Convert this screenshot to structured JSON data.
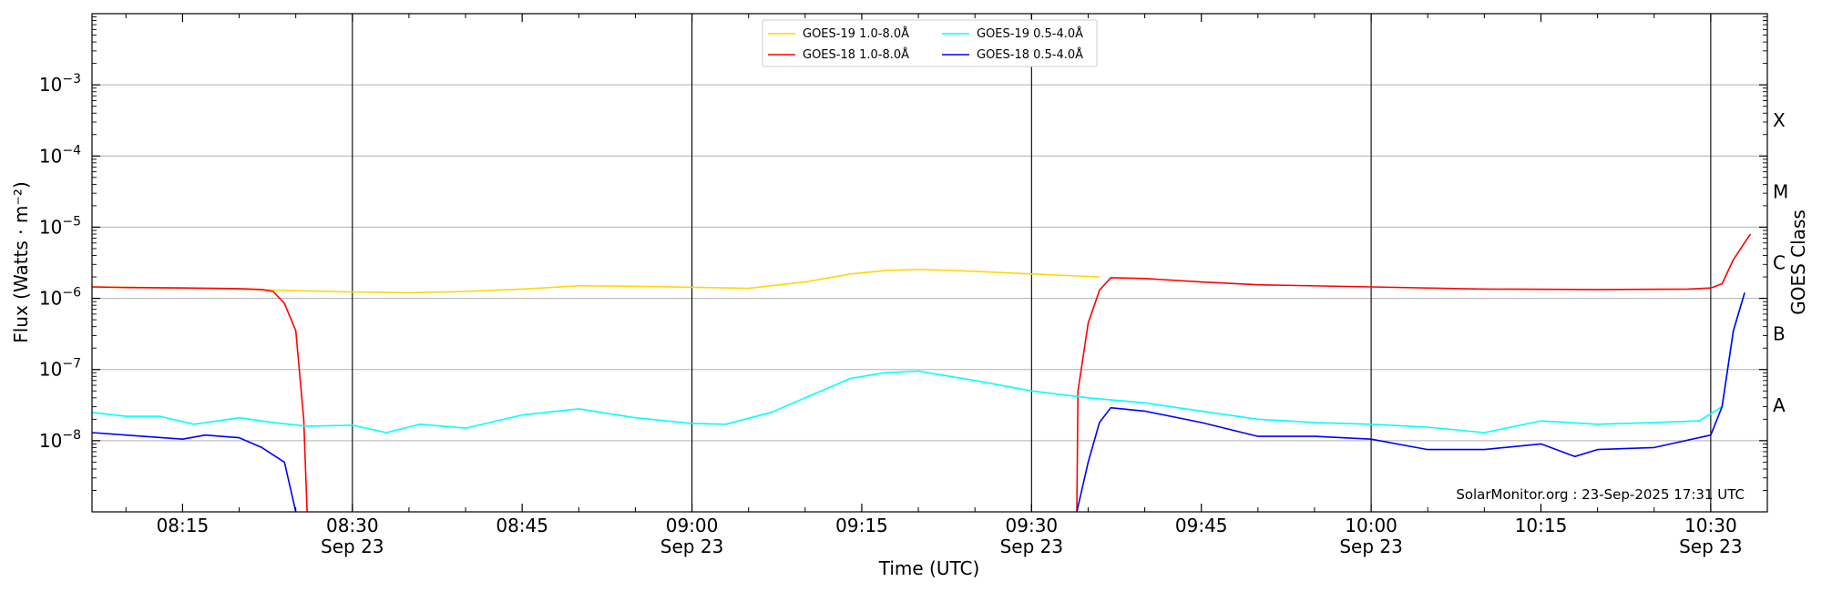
{
  "chart_data": {
    "type": "line",
    "xlabel": "Time (UTC)",
    "ylabel": "Flux (Watts · m⁻²)",
    "y2label": "GOES Class",
    "yscale": "log",
    "xlim": [
      "08:07",
      "10:35"
    ],
    "ylim": [
      1e-09,
      0.01
    ],
    "grid": "horizontal gridlines at each decade",
    "legend_position": "top-center",
    "annotation": "SolarMonitor.org : 23-Sep-2025 17:31 UTC",
    "vertical_lines": [
      "08:30",
      "09:00",
      "09:30",
      "10:00",
      "10:30"
    ],
    "x_ticks": [
      {
        "time": "08:15",
        "label": "08:15",
        "date": ""
      },
      {
        "time": "08:30",
        "label": "08:30",
        "date": "Sep 23"
      },
      {
        "time": "08:45",
        "label": "08:45",
        "date": ""
      },
      {
        "time": "09:00",
        "label": "09:00",
        "date": "Sep 23"
      },
      {
        "time": "09:15",
        "label": "09:15",
        "date": ""
      },
      {
        "time": "09:30",
        "label": "09:30",
        "date": "Sep 23"
      },
      {
        "time": "09:45",
        "label": "09:45",
        "date": ""
      },
      {
        "time": "10:00",
        "label": "10:00",
        "date": "Sep 23"
      },
      {
        "time": "10:15",
        "label": "10:15",
        "date": ""
      },
      {
        "time": "10:30",
        "label": "10:30",
        "date": "Sep 23"
      }
    ],
    "y_ticks": [
      {
        "value": 1e-08,
        "exp": "−8"
      },
      {
        "value": 1e-07,
        "exp": "−7"
      },
      {
        "value": 1e-06,
        "exp": "−6"
      },
      {
        "value": 1e-05,
        "exp": "−5"
      },
      {
        "value": 0.0001,
        "exp": "−4"
      },
      {
        "value": 0.001,
        "exp": "−3"
      }
    ],
    "goes_classes": [
      {
        "label": "A",
        "value": 3.16e-08
      },
      {
        "label": "B",
        "value": 3.16e-07
      },
      {
        "label": "C",
        "value": 3.16e-06
      },
      {
        "label": "M",
        "value": 3.16e-05
      },
      {
        "label": "X",
        "value": 0.000316
      }
    ],
    "series": [
      {
        "name": "GOES-19 1.0-8.0Å",
        "color": "#ffd700",
        "points": [
          [
            "08:07",
            1.45e-06
          ],
          [
            "08:15",
            1.4e-06
          ],
          [
            "08:20",
            1.35e-06
          ],
          [
            "08:25",
            1.28e-06
          ],
          [
            "08:30",
            1.23e-06
          ],
          [
            "08:35",
            1.2e-06
          ],
          [
            "08:40",
            1.25e-06
          ],
          [
            "08:45",
            1.35e-06
          ],
          [
            "08:50",
            1.5e-06
          ],
          [
            "08:55",
            1.48e-06
          ],
          [
            "09:00",
            1.43e-06
          ],
          [
            "09:05",
            1.38e-06
          ],
          [
            "09:10",
            1.7e-06
          ],
          [
            "09:14",
            2.2e-06
          ],
          [
            "09:17",
            2.45e-06
          ],
          [
            "09:20",
            2.55e-06
          ],
          [
            "09:25",
            2.4e-06
          ],
          [
            "09:30",
            2.2e-06
          ],
          [
            "09:36",
            2e-06
          ]
        ]
      },
      {
        "name": "GOES-18 1.0-8.0Å",
        "color": "#ff0000",
        "segments": [
          [
            [
              "08:07",
              1.45e-06
            ],
            [
              "08:10",
              1.42e-06
            ],
            [
              "08:15",
              1.4e-06
            ],
            [
              "08:20",
              1.37e-06
            ],
            [
              "08:22",
              1.33e-06
            ],
            [
              "08:23",
              1.25e-06
            ],
            [
              "08:24",
              8.5e-07
            ],
            [
              "08:25",
              3.5e-07
            ],
            [
              "08:25.7",
              2e-08
            ],
            [
              "08:26",
              1e-09
            ]
          ],
          [
            [
              "09:34",
              1e-09
            ],
            [
              "09:34.1",
              5e-08
            ],
            [
              "09:35",
              4.5e-07
            ],
            [
              "09:36",
              1.3e-06
            ],
            [
              "09:37",
              1.95e-06
            ],
            [
              "09:40",
              1.9e-06
            ],
            [
              "09:45",
              1.7e-06
            ],
            [
              "09:50",
              1.55e-06
            ],
            [
              "10:00",
              1.45e-06
            ],
            [
              "10:10",
              1.35e-06
            ],
            [
              "10:20",
              1.33e-06
            ],
            [
              "10:28",
              1.35e-06
            ],
            [
              "10:30",
              1.4e-06
            ],
            [
              "10:31",
              1.6e-06
            ],
            [
              "10:32",
              3.5e-06
            ],
            [
              "10:33.5",
              8e-06
            ]
          ]
        ]
      },
      {
        "name": "GOES-19 0.5-4.0Å",
        "color": "#00ffff",
        "points": [
          [
            "08:07",
            2.5e-08
          ],
          [
            "08:10",
            2.2e-08
          ],
          [
            "08:13",
            2.2e-08
          ],
          [
            "08:16",
            1.7e-08
          ],
          [
            "08:20",
            2.1e-08
          ],
          [
            "08:23",
            1.8e-08
          ],
          [
            "08:26",
            1.6e-08
          ],
          [
            "08:30",
            1.65e-08
          ],
          [
            "08:33",
            1.3e-08
          ],
          [
            "08:36",
            1.7e-08
          ],
          [
            "08:40",
            1.5e-08
          ],
          [
            "08:45",
            2.3e-08
          ],
          [
            "08:50",
            2.8e-08
          ],
          [
            "08:55",
            2.1e-08
          ],
          [
            "09:00",
            1.75e-08
          ],
          [
            "09:03",
            1.7e-08
          ],
          [
            "09:07",
            2.5e-08
          ],
          [
            "09:10",
            4e-08
          ],
          [
            "09:14",
            7.5e-08
          ],
          [
            "09:17",
            9e-08
          ],
          [
            "09:20",
            9.5e-08
          ],
          [
            "09:25",
            7e-08
          ],
          [
            "09:30",
            5e-08
          ],
          [
            "09:35",
            4e-08
          ],
          [
            "09:40",
            3.4e-08
          ],
          [
            "09:45",
            2.6e-08
          ],
          [
            "09:50",
            2e-08
          ],
          [
            "09:55",
            1.8e-08
          ],
          [
            "10:00",
            1.7e-08
          ],
          [
            "10:05",
            1.55e-08
          ],
          [
            "10:10",
            1.3e-08
          ],
          [
            "10:15",
            1.9e-08
          ],
          [
            "10:20",
            1.7e-08
          ],
          [
            "10:25",
            1.8e-08
          ],
          [
            "10:29",
            1.9e-08
          ],
          [
            "10:31",
            3e-08
          ],
          [
            "10:32",
            3.5e-07
          ],
          [
            "10:33",
            1.2e-06
          ]
        ]
      },
      {
        "name": "GOES-18 0.5-4.0Å",
        "color": "#0000ff",
        "segments": [
          [
            [
              "08:07",
              1.3e-08
            ],
            [
              "08:10",
              1.2e-08
            ],
            [
              "08:15",
              1.05e-08
            ],
            [
              "08:17",
              1.2e-08
            ],
            [
              "08:20",
              1.1e-08
            ],
            [
              "08:22",
              8e-09
            ],
            [
              "08:24",
              5e-09
            ],
            [
              "08:25",
              1e-09
            ]
          ],
          [
            [
              "09:34",
              1e-09
            ],
            [
              "09:35",
              5e-09
            ],
            [
              "09:36",
              1.8e-08
            ],
            [
              "09:37",
              2.9e-08
            ],
            [
              "09:40",
              2.6e-08
            ],
            [
              "09:45",
              1.8e-08
            ],
            [
              "09:50",
              1.15e-08
            ],
            [
              "09:55",
              1.15e-08
            ],
            [
              "10:00",
              1.05e-08
            ],
            [
              "10:05",
              7.5e-09
            ],
            [
              "10:10",
              7.5e-09
            ],
            [
              "10:15",
              9e-09
            ],
            [
              "10:18",
              6e-09
            ],
            [
              "10:20",
              7.5e-09
            ],
            [
              "10:25",
              8e-09
            ],
            [
              "10:30",
              1.2e-08
            ],
            [
              "10:31",
              3e-08
            ],
            [
              "10:32",
              3.5e-07
            ],
            [
              "10:33",
              1.2e-06
            ]
          ]
        ]
      }
    ]
  }
}
